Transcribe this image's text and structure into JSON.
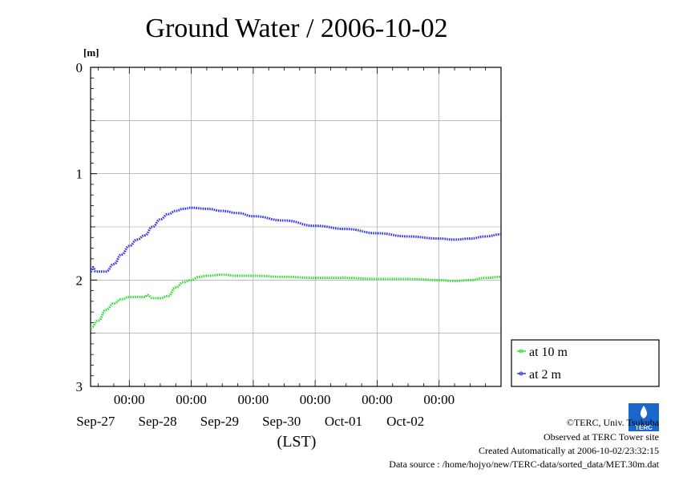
{
  "chart_data": {
    "type": "line",
    "title": "Ground Water / 2006-10-02",
    "ylabel": "[m]",
    "xlabel": "(LST)",
    "ylim": [
      0,
      3
    ],
    "y_inverted": true,
    "y_ticks": [
      "0",
      "1",
      "2",
      "3"
    ],
    "x_tick_time": "00:00",
    "x_tick_dates": [
      "Sep-27",
      "Sep-28",
      "Sep-29",
      "Sep-30",
      "Oct-01",
      "Oct-02"
    ],
    "grid": true,
    "legend_position": "right",
    "series": [
      {
        "name": "at 10 m",
        "color": "#33dd33",
        "points": [
          [
            "09-26 09:00",
            2.45
          ],
          [
            "09-26 12:00",
            2.38
          ],
          [
            "09-26 15:00",
            2.28
          ],
          [
            "09-26 18:00",
            2.22
          ],
          [
            "09-26 21:00",
            2.18
          ],
          [
            "09-27 00:00",
            2.16
          ],
          [
            "09-27 03:00",
            2.16
          ],
          [
            "09-27 06:00",
            2.16
          ],
          [
            "09-27 07:00",
            2.14
          ],
          [
            "09-27 09:00",
            2.17
          ],
          [
            "09-27 12:00",
            2.17
          ],
          [
            "09-27 15:00",
            2.15
          ],
          [
            "09-27 18:00",
            2.07
          ],
          [
            "09-27 21:00",
            2.02
          ],
          [
            "09-28 00:00",
            2.0
          ],
          [
            "09-28 03:00",
            1.97
          ],
          [
            "09-28 06:00",
            1.96
          ],
          [
            "09-28 12:00",
            1.95
          ],
          [
            "09-28 18:00",
            1.96
          ],
          [
            "09-29 00:00",
            1.96
          ],
          [
            "09-29 12:00",
            1.97
          ],
          [
            "09-30 00:00",
            1.98
          ],
          [
            "09-30 12:00",
            1.98
          ],
          [
            "10-01 00:00",
            1.99
          ],
          [
            "10-01 12:00",
            1.99
          ],
          [
            "10-02 00:00",
            2.0
          ],
          [
            "10-02 06:00",
            2.01
          ],
          [
            "10-02 12:00",
            2.0
          ],
          [
            "10-02 18:00",
            1.98
          ],
          [
            "10-03 00:00",
            1.97
          ]
        ]
      },
      {
        "name": "at 2 m",
        "color": "#3333ee",
        "points": [
          [
            "09-26 09:00",
            1.92
          ],
          [
            "09-26 10:00",
            1.88
          ],
          [
            "09-26 11:00",
            1.92
          ],
          [
            "09-26 15:00",
            1.92
          ],
          [
            "09-26 18:00",
            1.85
          ],
          [
            "09-26 21:00",
            1.76
          ],
          [
            "09-27 00:00",
            1.68
          ],
          [
            "09-27 03:00",
            1.62
          ],
          [
            "09-27 06:00",
            1.58
          ],
          [
            "09-27 09:00",
            1.5
          ],
          [
            "09-27 12:00",
            1.43
          ],
          [
            "09-27 15:00",
            1.38
          ],
          [
            "09-27 18:00",
            1.35
          ],
          [
            "09-27 21:00",
            1.33
          ],
          [
            "09-28 00:00",
            1.32
          ],
          [
            "09-28 06:00",
            1.33
          ],
          [
            "09-28 12:00",
            1.35
          ],
          [
            "09-28 18:00",
            1.37
          ],
          [
            "09-29 00:00",
            1.4
          ],
          [
            "09-29 12:00",
            1.44
          ],
          [
            "09-30 00:00",
            1.49
          ],
          [
            "09-30 12:00",
            1.52
          ],
          [
            "10-01 00:00",
            1.56
          ],
          [
            "10-01 12:00",
            1.59
          ],
          [
            "10-02 00:00",
            1.61
          ],
          [
            "10-02 06:00",
            1.62
          ],
          [
            "10-02 12:00",
            1.61
          ],
          [
            "10-02 18:00",
            1.59
          ],
          [
            "10-03 00:00",
            1.57
          ]
        ]
      }
    ]
  },
  "logo": {
    "text": "TERC",
    "color": "#1a66cc"
  },
  "footer": {
    "copyright": "©TERC, Univ. Tsukuba",
    "observed": "Observed at TERC Tower site",
    "created": "Created Automatically at 2006-10-02/23:32:15",
    "source": "Data source : /home/hojyo/new/TERC-data/sorted_data/MET.30m.dat"
  }
}
